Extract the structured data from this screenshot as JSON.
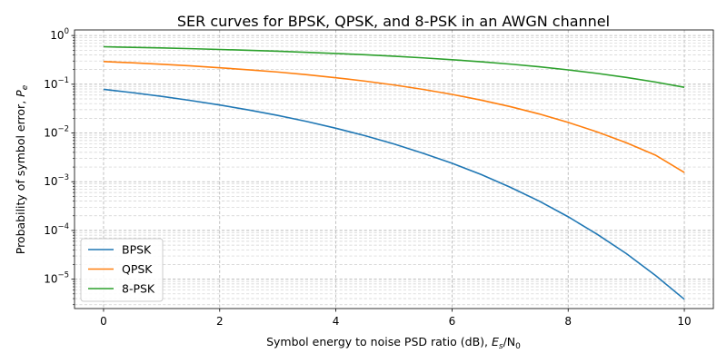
{
  "chart_data": {
    "type": "line",
    "title": "SER curves for BPSK, QPSK, and 8-PSK in an AWGN channel",
    "xlabel": "Symbol energy to noise PSD ratio (dB), ",
    "xlabel_math": "E",
    "xlabel_math_sub": "s",
    "xlabel_math_tail": "/N",
    "xlabel_math_tail_sub": "0",
    "ylabel": "Probability of symbol error, ",
    "ylabel_math": "P",
    "ylabel_math_sub": "e",
    "xlim": [
      -0.5,
      10.5
    ],
    "ylim": [
      2.5e-06,
      1.3
    ],
    "y_scale": "log",
    "grid": "both (major and minor), dashed",
    "legend_position": "lower-left",
    "x_ticks": [
      0,
      2,
      4,
      6,
      8,
      10
    ],
    "y_ticks": [
      {
        "value": 1e-05,
        "base": "10",
        "exp": "−5"
      },
      {
        "value": 0.0001,
        "base": "10",
        "exp": "−4"
      },
      {
        "value": 0.001,
        "base": "10",
        "exp": "−3"
      },
      {
        "value": 0.01,
        "base": "10",
        "exp": "−2"
      },
      {
        "value": 0.1,
        "base": "10",
        "exp": "−1"
      },
      {
        "value": 1,
        "base": "10",
        "exp": "0"
      }
    ],
    "x": [
      0,
      0.5,
      1,
      1.5,
      2,
      2.5,
      3,
      3.5,
      4,
      4.5,
      5,
      5.5,
      6,
      6.5,
      7,
      7.5,
      8,
      8.5,
      9,
      9.5,
      10
    ],
    "series": [
      {
        "name": "BPSK",
        "color": "#1f77b4",
        "values": [
          0.0786,
          0.0671,
          0.0563,
          0.0464,
          0.0375,
          0.0296,
          0.0229,
          0.0172,
          0.0125,
          0.00881,
          0.00595,
          0.00384,
          0.00239,
          0.00141,
          0.000773,
          0.000401,
          0.000191,
          8.34e-05,
          3.36e-05,
          1.2e-05,
          3.87e-06
        ]
      },
      {
        "name": "QPSK",
        "color": "#ff7f0e",
        "values": [
          0.292,
          0.275,
          0.257,
          0.238,
          0.218,
          0.198,
          0.178,
          0.157,
          0.136,
          0.116,
          0.0966,
          0.0785,
          0.0619,
          0.0473,
          0.0348,
          0.0246,
          0.0165,
          0.0105,
          0.00631,
          0.00353,
          0.00155
        ]
      },
      {
        "name": "8-PSK",
        "color": "#2ca02c",
        "values": [
          0.588,
          0.572,
          0.555,
          0.537,
          0.517,
          0.497,
          0.475,
          0.452,
          0.428,
          0.403,
          0.376,
          0.348,
          0.319,
          0.289,
          0.259,
          0.228,
          0.197,
          0.167,
          0.138,
          0.111,
          0.0865
        ]
      }
    ]
  }
}
